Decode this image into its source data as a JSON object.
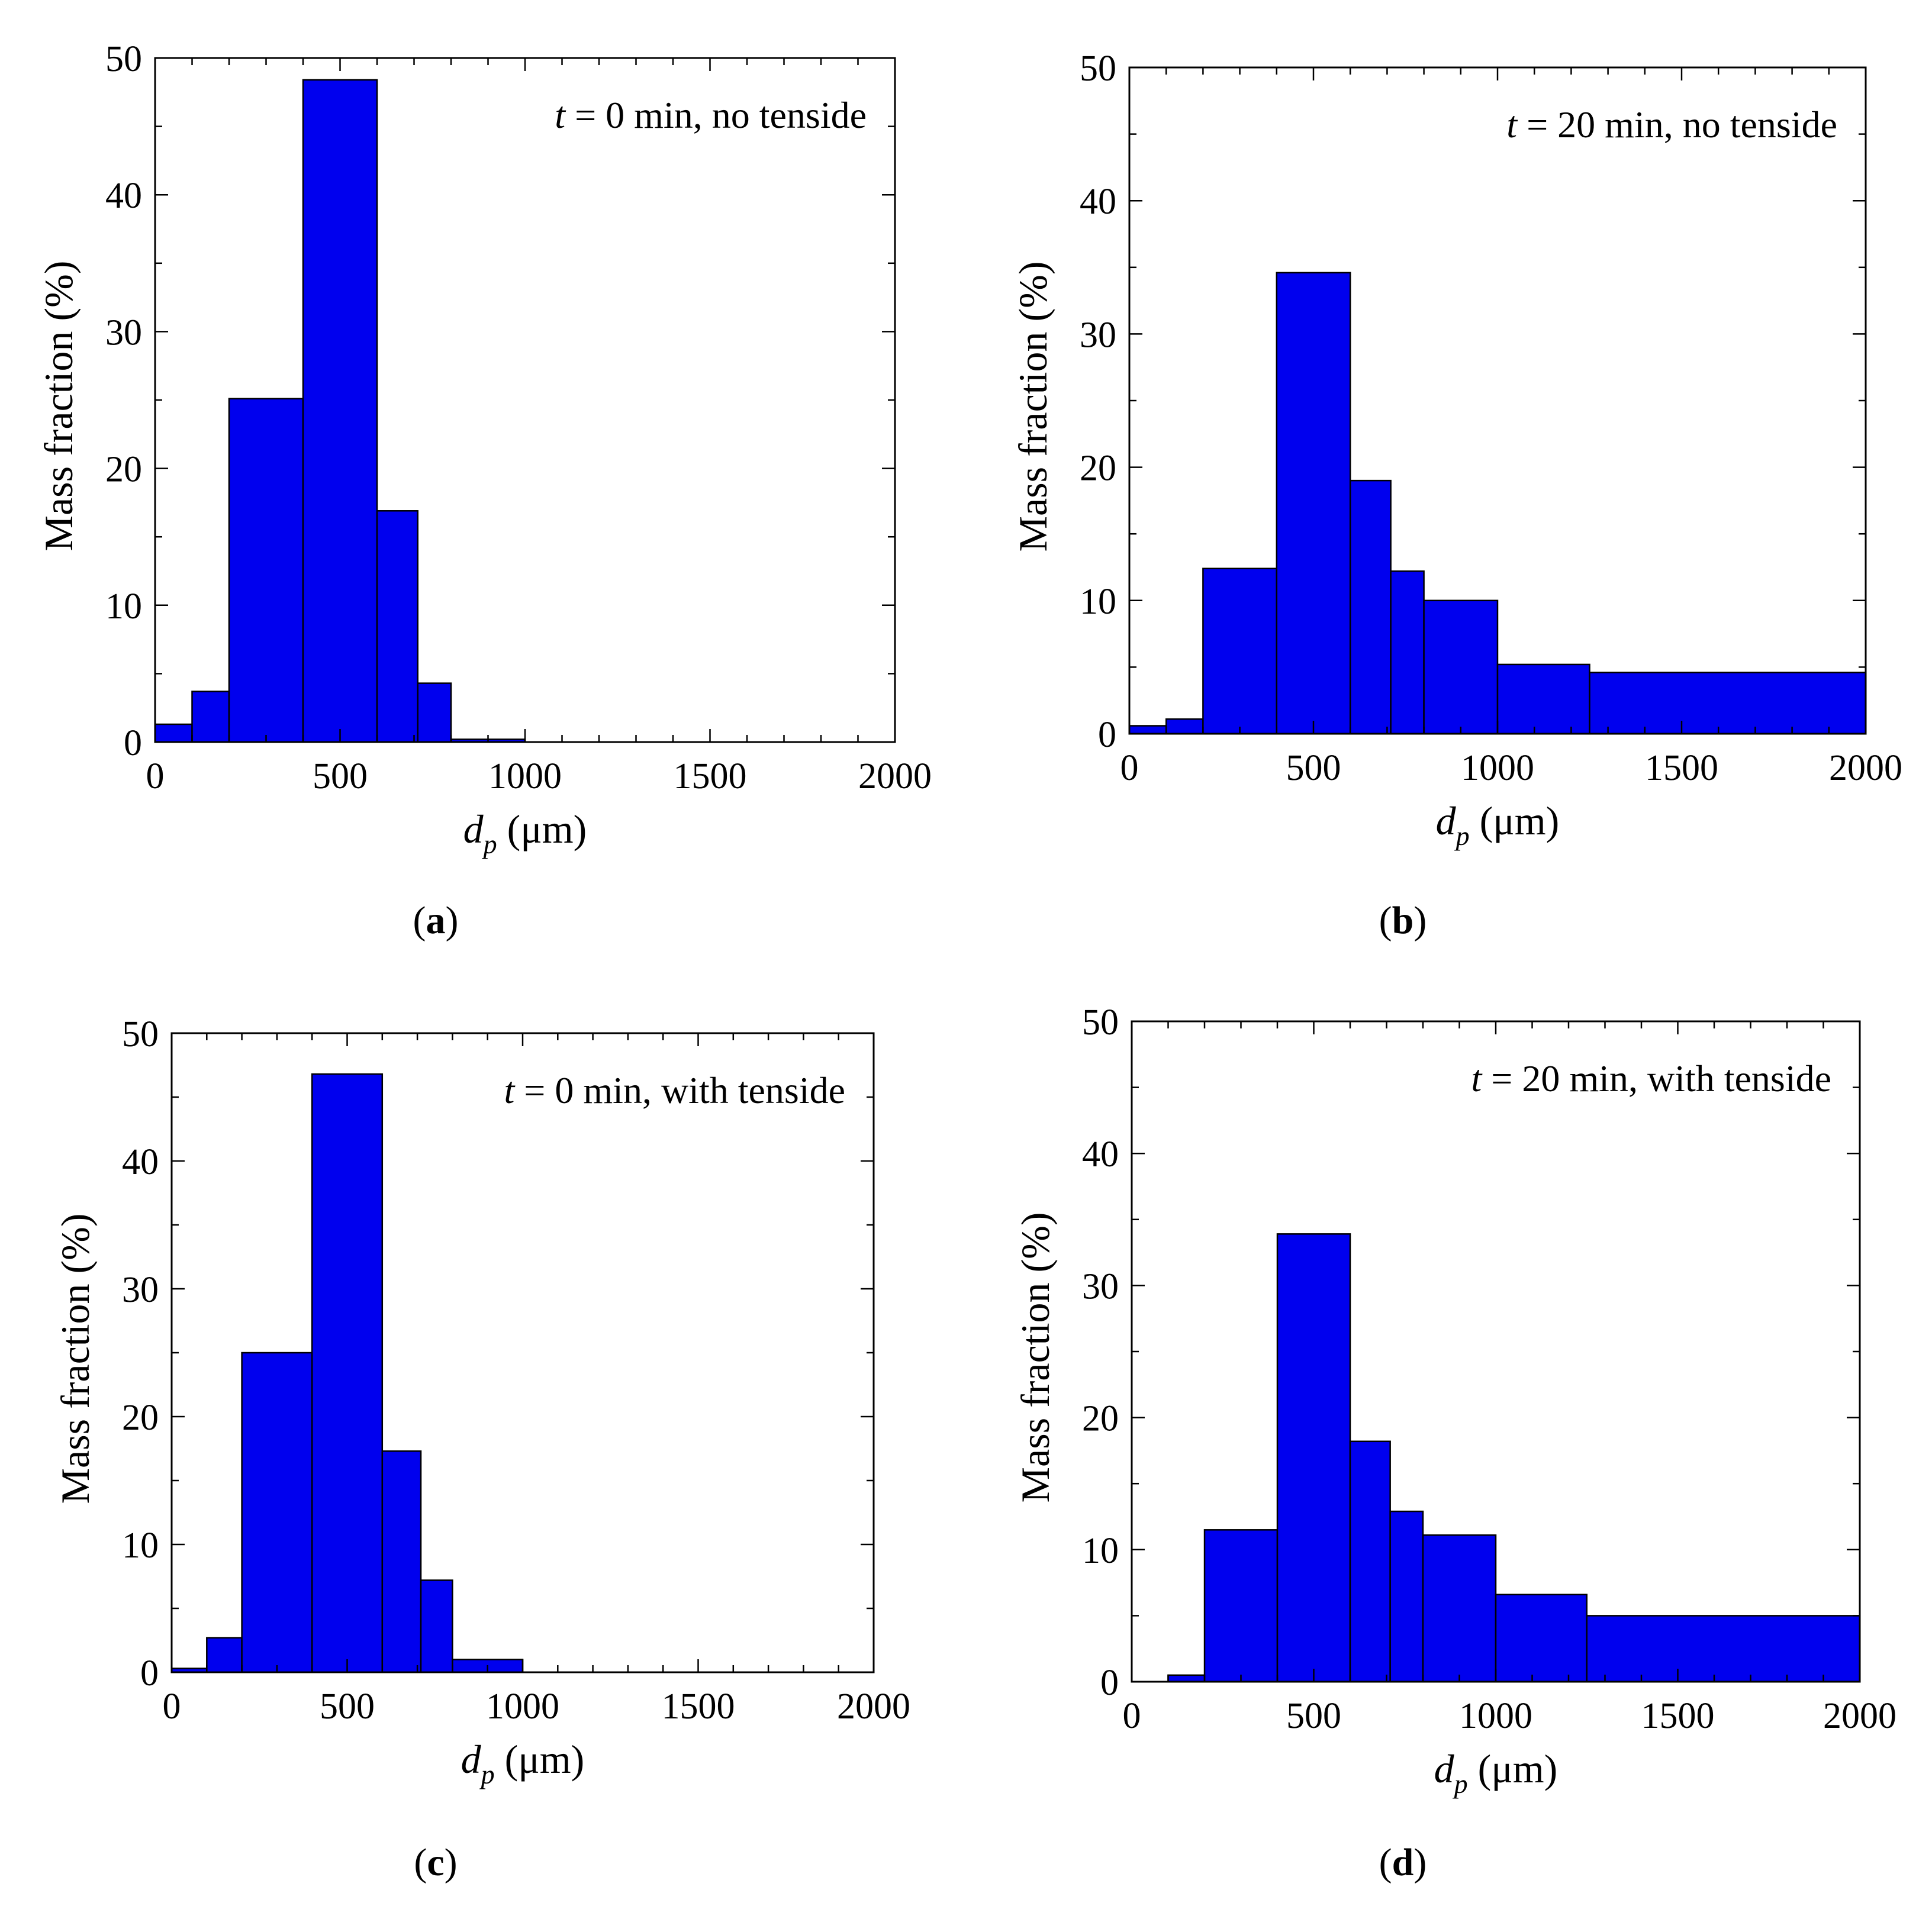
{
  "figure": {
    "panels": [
      {
        "id": "a",
        "label_open": "(",
        "label_letter": "a",
        "label_close": ")"
      },
      {
        "id": "b",
        "label_open": "(",
        "label_letter": "b",
        "label_close": ")"
      },
      {
        "id": "c",
        "label_open": "(",
        "label_letter": "c",
        "label_close": ")"
      },
      {
        "id": "d",
        "label_open": "(",
        "label_letter": "d",
        "label_close": ")"
      }
    ]
  },
  "colors": {
    "bar_fill": "#0000ee",
    "bar_stroke": "#000000",
    "axis": "#000000"
  },
  "chart_data": [
    {
      "type": "bar",
      "title_italic": "t",
      "title_rest": " = 0 min, no tenside",
      "xlabel_italic": "d",
      "xlabel_sub": "p",
      "xlabel_rest": " (μm)",
      "ylabel": "Mass fraction (%)",
      "xlim": [
        0,
        2000
      ],
      "ylim": [
        0,
        50
      ],
      "xticks": [
        0,
        500,
        1000,
        1500,
        2000
      ],
      "yticks": [
        0,
        10,
        20,
        30,
        40,
        50
      ],
      "bins": [
        {
          "x0": 0,
          "x1": 100,
          "value": 1.3
        },
        {
          "x0": 100,
          "x1": 200,
          "value": 3.7
        },
        {
          "x0": 200,
          "x1": 400,
          "value": 25.1
        },
        {
          "x0": 400,
          "x1": 600,
          "value": 48.4
        },
        {
          "x0": 600,
          "x1": 710,
          "value": 16.9
        },
        {
          "x0": 710,
          "x1": 800,
          "value": 4.3
        },
        {
          "x0": 800,
          "x1": 1000,
          "value": 0.2
        }
      ]
    },
    {
      "type": "bar",
      "title_italic": "t",
      "title_rest": " = 20 min, no tenside",
      "xlabel_italic": "d",
      "xlabel_sub": "p",
      "xlabel_rest": " (μm)",
      "ylabel": "Mass fraction (%)",
      "xlim": [
        0,
        2000
      ],
      "ylim": [
        0,
        50
      ],
      "xticks": [
        0,
        500,
        1000,
        1500,
        2000
      ],
      "yticks": [
        0,
        10,
        20,
        30,
        40,
        50
      ],
      "bins": [
        {
          "x0": 0,
          "x1": 100,
          "value": 0.6
        },
        {
          "x0": 100,
          "x1": 200,
          "value": 1.1
        },
        {
          "x0": 200,
          "x1": 400,
          "value": 12.4
        },
        {
          "x0": 400,
          "x1": 600,
          "value": 34.6
        },
        {
          "x0": 600,
          "x1": 710,
          "value": 19.0
        },
        {
          "x0": 710,
          "x1": 800,
          "value": 12.2
        },
        {
          "x0": 800,
          "x1": 1000,
          "value": 10.0
        },
        {
          "x0": 1000,
          "x1": 1250,
          "value": 5.2
        },
        {
          "x0": 1250,
          "x1": 2000,
          "value": 4.6
        }
      ]
    },
    {
      "type": "bar",
      "title_italic": "t",
      "title_rest": " = 0 min, with tenside",
      "xlabel_italic": "d",
      "xlabel_sub": "p",
      "xlabel_rest": " (μm)",
      "ylabel": "Mass fraction (%)",
      "xlim": [
        0,
        2000
      ],
      "ylim": [
        0,
        50
      ],
      "xticks": [
        0,
        500,
        1000,
        1500,
        2000
      ],
      "yticks": [
        0,
        10,
        20,
        30,
        40,
        50
      ],
      "bins": [
        {
          "x0": 0,
          "x1": 100,
          "value": 0.3
        },
        {
          "x0": 100,
          "x1": 200,
          "value": 2.7
        },
        {
          "x0": 200,
          "x1": 400,
          "value": 25.0
        },
        {
          "x0": 400,
          "x1": 600,
          "value": 46.8
        },
        {
          "x0": 600,
          "x1": 710,
          "value": 17.3
        },
        {
          "x0": 710,
          "x1": 800,
          "value": 7.2
        },
        {
          "x0": 800,
          "x1": 1000,
          "value": 1.0
        }
      ]
    },
    {
      "type": "bar",
      "title_italic": "t",
      "title_rest": " = 20 min, with tenside",
      "xlabel_italic": "d",
      "xlabel_sub": "p",
      "xlabel_rest": " (μm)",
      "ylabel": "Mass fraction (%)",
      "xlim": [
        0,
        2000
      ],
      "ylim": [
        0,
        50
      ],
      "xticks": [
        0,
        500,
        1000,
        1500,
        2000
      ],
      "yticks": [
        0,
        10,
        20,
        30,
        40,
        50
      ],
      "bins": [
        {
          "x0": 0,
          "x1": 100,
          "value": 0.0
        },
        {
          "x0": 100,
          "x1": 200,
          "value": 0.5
        },
        {
          "x0": 200,
          "x1": 400,
          "value": 11.5
        },
        {
          "x0": 400,
          "x1": 600,
          "value": 33.9
        },
        {
          "x0": 600,
          "x1": 710,
          "value": 18.2
        },
        {
          "x0": 710,
          "x1": 800,
          "value": 12.9
        },
        {
          "x0": 800,
          "x1": 1000,
          "value": 11.1
        },
        {
          "x0": 1000,
          "x1": 1250,
          "value": 6.6
        },
        {
          "x0": 1250,
          "x1": 2000,
          "value": 5.0
        }
      ]
    }
  ]
}
